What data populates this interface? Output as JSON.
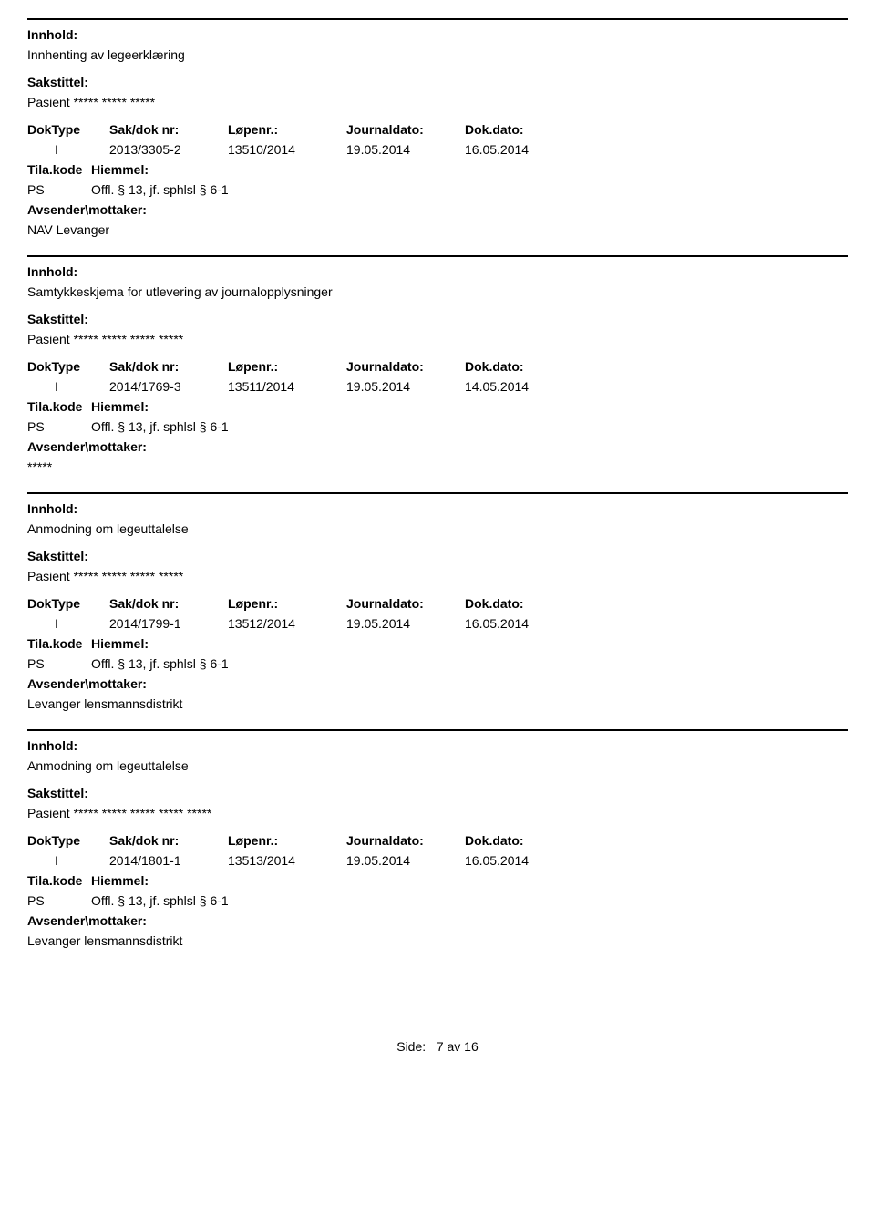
{
  "labels": {
    "innhold": "Innhold:",
    "sakstittel": "Sakstittel:",
    "doktype": "DokType",
    "sakdoknr": "Sak/dok nr:",
    "lopenr": "Løpenr.:",
    "journaldato": "Journaldato:",
    "dokdato": "Dok.dato:",
    "tilakode": "Tila.kode",
    "hiemmel": "Hiemmel:",
    "avsender": "Avsender\\mottaker:"
  },
  "entries": [
    {
      "innhold": "Innhenting av legeerklæring",
      "sakstittel": "Pasient ***** ***** *****",
      "doktype": "I",
      "sakdoknr": "2013/3305-2",
      "lopenr": "13510/2014",
      "journaldato": "19.05.2014",
      "dokdato": "16.05.2014",
      "tilakode": "PS",
      "hiemmel": "Offl. § 13, jf. sphlsl § 6-1",
      "avsender": "NAV Levanger"
    },
    {
      "innhold": "Samtykkeskjema for utlevering av journalopplysninger",
      "sakstittel": "Pasient ***** ***** ***** *****",
      "doktype": "I",
      "sakdoknr": "2014/1769-3",
      "lopenr": "13511/2014",
      "journaldato": "19.05.2014",
      "dokdato": "14.05.2014",
      "tilakode": "PS",
      "hiemmel": "Offl. § 13, jf. sphlsl § 6-1",
      "avsender": "*****"
    },
    {
      "innhold": "Anmodning om legeuttalelse",
      "sakstittel": "Pasient ***** ***** ***** *****",
      "doktype": "I",
      "sakdoknr": "2014/1799-1",
      "lopenr": "13512/2014",
      "journaldato": "19.05.2014",
      "dokdato": "16.05.2014",
      "tilakode": "PS",
      "hiemmel": "Offl. § 13, jf. sphlsl § 6-1",
      "avsender": "Levanger lensmannsdistrikt"
    },
    {
      "innhold": "Anmodning om legeuttalelse",
      "sakstittel": "Pasient ***** ***** ***** ***** *****",
      "doktype": "I",
      "sakdoknr": "2014/1801-1",
      "lopenr": "13513/2014",
      "journaldato": "19.05.2014",
      "dokdato": "16.05.2014",
      "tilakode": "PS",
      "hiemmel": "Offl. § 13, jf. sphlsl § 6-1",
      "avsender": "Levanger lensmannsdistrikt"
    }
  ],
  "footer": {
    "label": "Side:",
    "page": "7 av 16"
  }
}
